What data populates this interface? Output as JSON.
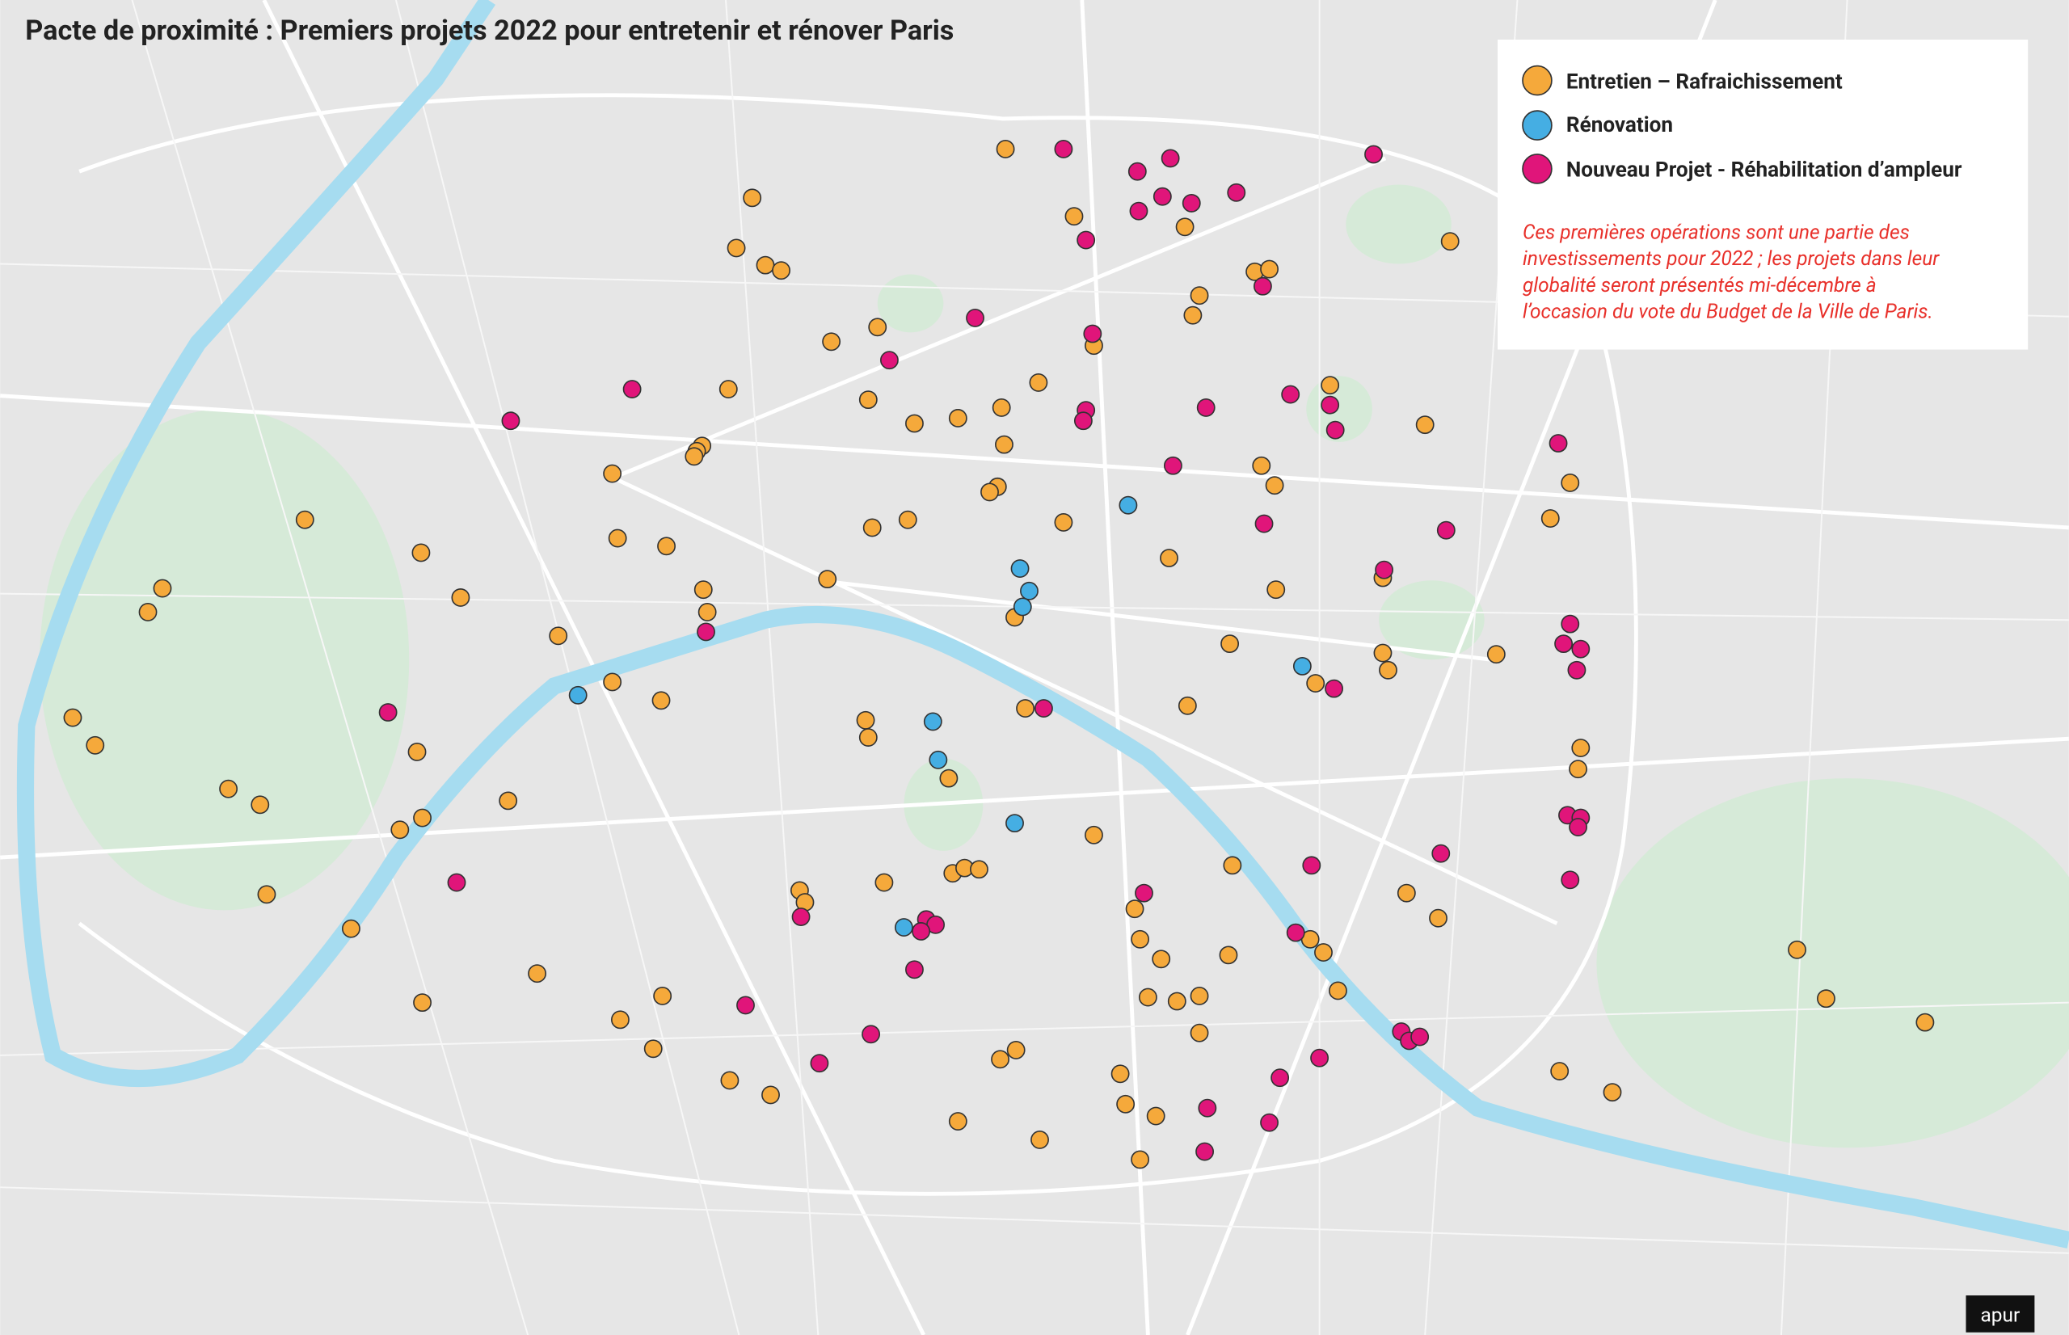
{
  "title": "Pacte de proximité : Premiers projets 2022 pour entretenir et rénover Paris",
  "legend": [
    {
      "label": "Entretien – Rafraichissement",
      "color": "#f5a93b"
    },
    {
      "label": "Rénovation",
      "color": "#45aee3"
    },
    {
      "label": "Nouveau Projet - Réhabilitation d’ampleur",
      "color": "#e0157a"
    }
  ],
  "note": [
    "Ces premières opérations sont une partie des",
    "investissements pour 2022 ; les projets dans leur",
    "globalité seront présentés mi-décembre à",
    "l’occasion du vote du Budget de la Ville de Paris."
  ],
  "logo": "apur"
}
